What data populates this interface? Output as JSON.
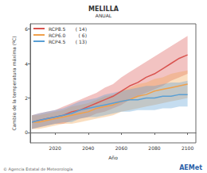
{
  "chart_data": {
    "type": "line",
    "title": "MELILLA",
    "subtitle": "ANUAL",
    "x_label": "Año",
    "y_label": "Cambio de la temperatura máxima (ºC)",
    "footer": "© Agencia Estatal de Meteorología",
    "logo": "AEMet",
    "x": [
      2006,
      2010,
      2015,
      2020,
      2025,
      2030,
      2035,
      2040,
      2045,
      2050,
      2055,
      2060,
      2065,
      2070,
      2075,
      2080,
      2085,
      2090,
      2095,
      2100
    ],
    "xlim": [
      2005,
      2105
    ],
    "xticks": [
      2020,
      2040,
      2060,
      2080,
      2100
    ],
    "ylim": [
      -0.6,
      6.3
    ],
    "yticks": [
      0,
      2,
      4,
      6
    ],
    "grid": false,
    "legend": "upper left",
    "series": [
      {
        "name": "RCP8.5",
        "label": "( 14)",
        "color": "#d9534f",
        "values": [
          0.6,
          0.7,
          0.8,
          0.9,
          1.0,
          1.2,
          1.3,
          1.5,
          1.7,
          1.9,
          2.1,
          2.4,
          2.7,
          2.9,
          3.2,
          3.4,
          3.7,
          4.0,
          4.3,
          4.5
        ],
        "lower": [
          0.2,
          0.3,
          0.4,
          0.5,
          0.5,
          0.7,
          0.8,
          0.9,
          1.1,
          1.2,
          1.4,
          1.6,
          1.9,
          2.1,
          2.3,
          2.5,
          2.7,
          3.0,
          3.2,
          3.4
        ],
        "upper": [
          1.0,
          1.1,
          1.2,
          1.3,
          1.5,
          1.7,
          1.9,
          2.1,
          2.3,
          2.6,
          2.8,
          3.2,
          3.5,
          3.8,
          4.1,
          4.4,
          4.7,
          5.0,
          5.3,
          5.6
        ]
      },
      {
        "name": "RCP6.0",
        "label": "( 6)",
        "color": "#f0a04b",
        "values": [
          0.6,
          0.6,
          0.7,
          0.8,
          0.9,
          1.0,
          1.1,
          1.2,
          1.4,
          1.5,
          1.6,
          1.8,
          1.9,
          2.1,
          2.2,
          2.4,
          2.5,
          2.6,
          2.7,
          2.8
        ],
        "lower": [
          0.2,
          0.2,
          0.3,
          0.4,
          0.5,
          0.5,
          0.6,
          0.7,
          0.8,
          0.9,
          1.0,
          1.2,
          1.3,
          1.4,
          1.5,
          1.6,
          1.7,
          1.8,
          1.9,
          2.0
        ],
        "upper": [
          1.0,
          1.0,
          1.1,
          1.2,
          1.3,
          1.5,
          1.6,
          1.7,
          1.9,
          2.1,
          2.2,
          2.4,
          2.6,
          2.8,
          2.9,
          3.1,
          3.2,
          3.4,
          3.5,
          3.6
        ]
      },
      {
        "name": "RCP4.5",
        "label": "( 13)",
        "color": "#5a9fd4",
        "values": [
          0.6,
          0.7,
          0.8,
          0.9,
          1.0,
          1.1,
          1.3,
          1.4,
          1.5,
          1.6,
          1.7,
          1.8,
          1.9,
          1.9,
          2.0,
          2.0,
          2.1,
          2.1,
          2.2,
          2.2
        ],
        "lower": [
          0.2,
          0.3,
          0.4,
          0.5,
          0.6,
          0.6,
          0.8,
          0.9,
          0.9,
          1.0,
          1.1,
          1.2,
          1.2,
          1.3,
          1.3,
          1.3,
          1.4,
          1.4,
          1.5,
          1.5
        ],
        "upper": [
          1.0,
          1.1,
          1.2,
          1.3,
          1.4,
          1.6,
          1.8,
          1.9,
          2.0,
          2.2,
          2.3,
          2.4,
          2.5,
          2.6,
          2.7,
          2.7,
          2.8,
          2.9,
          2.9,
          3.0
        ]
      }
    ]
  }
}
